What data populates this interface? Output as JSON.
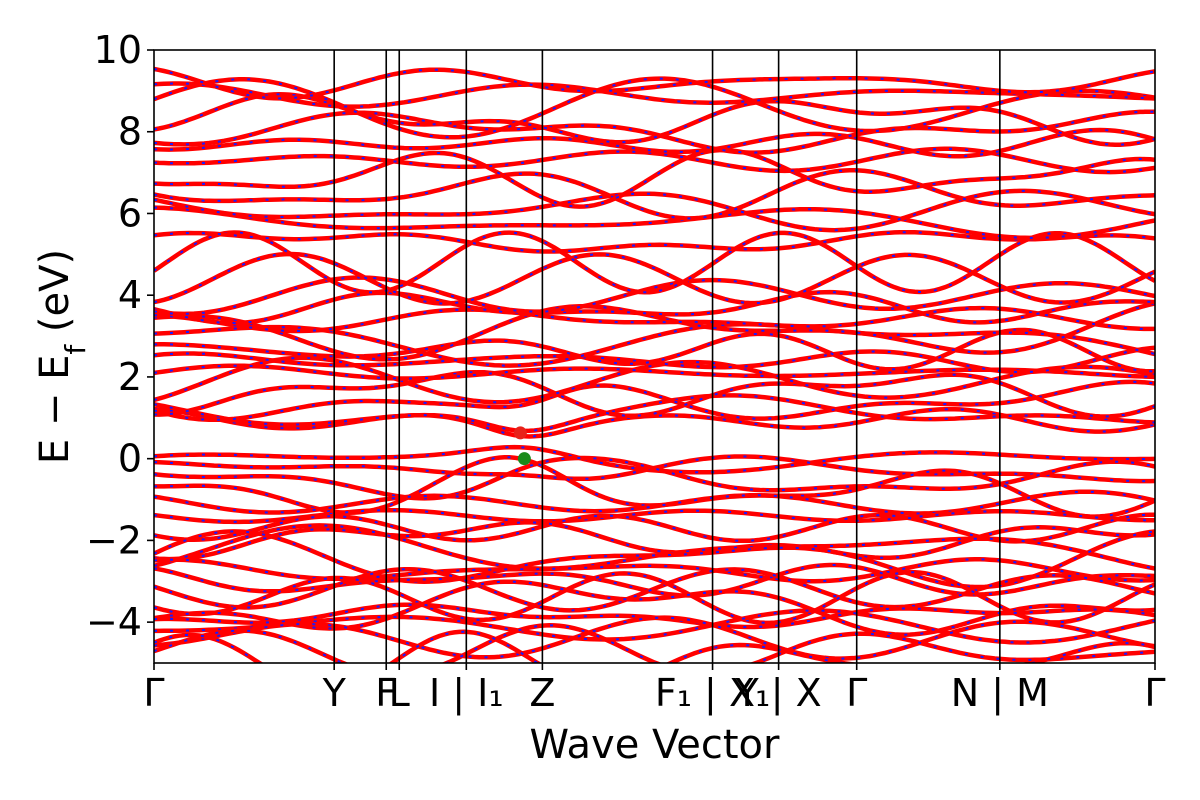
{
  "chart_data": {
    "type": "line",
    "title": "",
    "xlabel": "Wave Vector",
    "ylabel": "E − E_f (eV)",
    "ylabel_main": "E − E",
    "ylabel_sub": "f",
    "ylabel_unit": " (eV)",
    "ylim": [
      -5,
      10
    ],
    "yticks": [
      -4,
      -2,
      0,
      2,
      4,
      6,
      8,
      10
    ],
    "ytick_labels": [
      "−4",
      "−2",
      "0",
      "2",
      "4",
      "6",
      "8",
      "10"
    ],
    "xlim": [
      0,
      1
    ],
    "kpath_ticks": [
      {
        "x": 0.0,
        "label": "Γ"
      },
      {
        "x": 0.18,
        "label": "Y"
      },
      {
        "x": 0.232,
        "label": "F"
      },
      {
        "x": 0.245,
        "label": "L"
      },
      {
        "x": 0.312,
        "label": "I | I₁"
      },
      {
        "x": 0.388,
        "label": "Z"
      },
      {
        "x": 0.558,
        "label": "F₁ | X₁"
      },
      {
        "x": 0.624,
        "label": "Y | X"
      },
      {
        "x": 0.702,
        "label": "Γ"
      },
      {
        "x": 0.845,
        "label": "N | M"
      },
      {
        "x": 1.0,
        "label": "Γ"
      }
    ],
    "band_edges": [
      {
        "name": "cbm",
        "x": 0.366,
        "y": 0.63,
        "color": "#e8221a"
      },
      {
        "name": "vbm",
        "x": 0.37,
        "y": 0.0,
        "color": "#1a8a1a"
      }
    ],
    "series": [
      {
        "color": "#ff0000",
        "dash_color": "#1a1aff"
      }
    ],
    "band_groups": {
      "valence_levels": [
        -0.05,
        -0.3,
        -0.55,
        -0.8,
        -1.1,
        -1.4,
        -1.7,
        -2.0,
        -2.25,
        -2.5,
        -2.75,
        -3.0,
        -3.2,
        -3.4,
        -3.6,
        -3.85,
        -4.1,
        -4.4,
        -4.7,
        -4.95
      ],
      "conduction_levels": [
        0.95,
        1.15,
        1.4,
        1.65,
        1.9,
        2.1,
        2.4,
        2.65,
        2.9,
        3.15,
        3.4,
        3.7,
        4.0,
        4.4,
        4.8,
        5.3,
        5.8,
        6.1,
        6.5,
        6.9,
        7.3,
        7.7,
        8.0,
        8.3,
        8.6,
        8.9,
        9.2
      ]
    },
    "grid": false,
    "legend": "none"
  }
}
